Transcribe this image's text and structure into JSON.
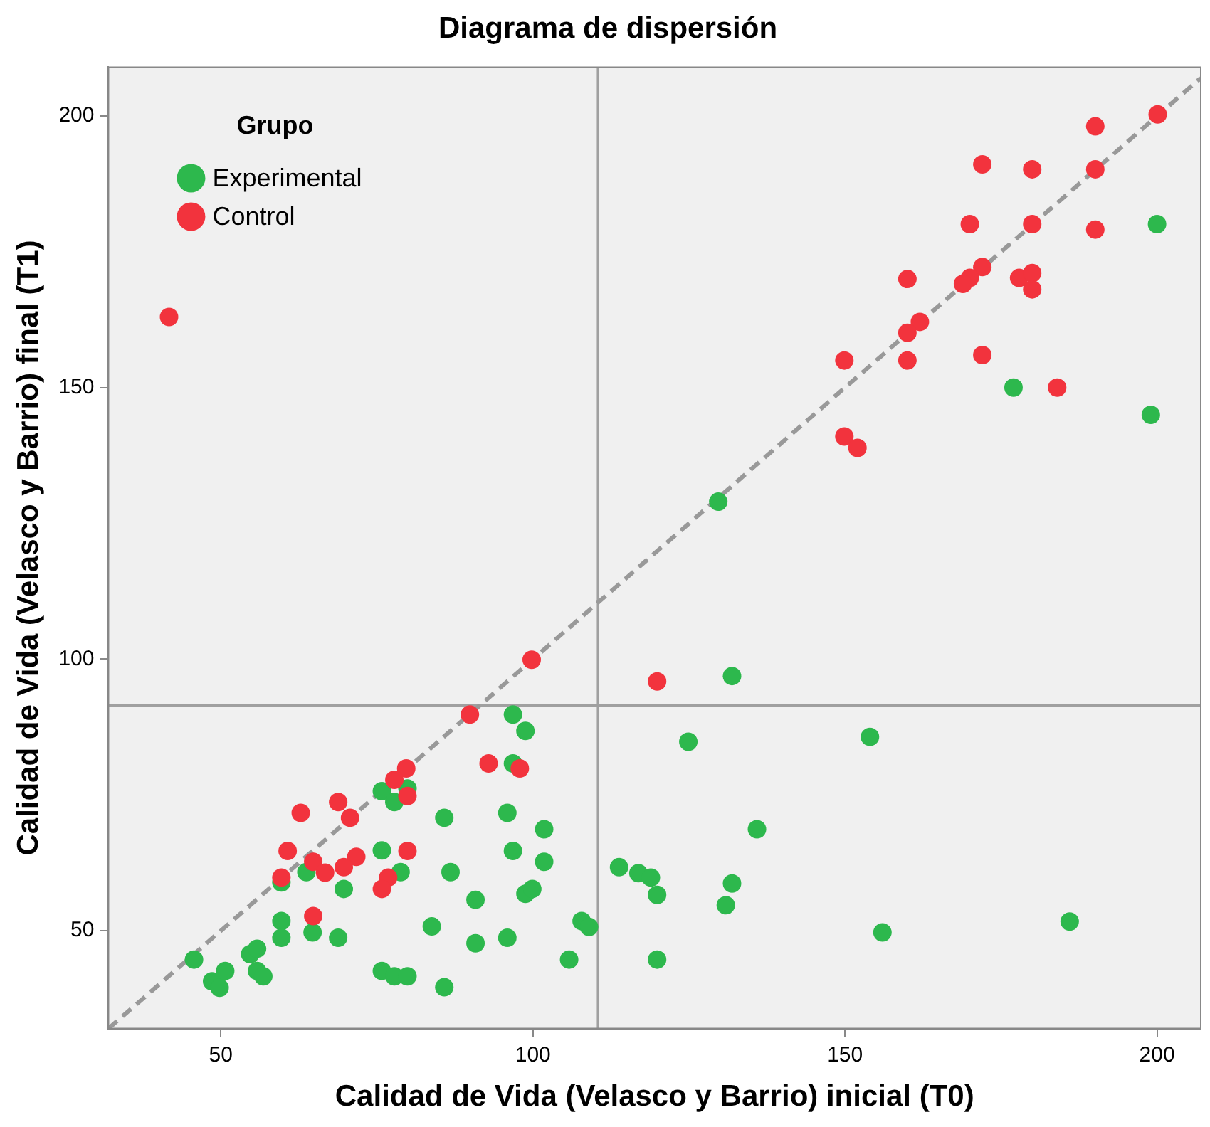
{
  "chart_data": {
    "type": "scatter",
    "title": "Diagrama de dispersión",
    "xlabel": "Calidad de Vida (Velasco y Barrio) inicial (T0)",
    "ylabel": "Calidad de Vida (Velasco y Barrio) final (T1)",
    "legend_title": "Grupo",
    "legend": "top left",
    "marker": "circle",
    "xlim": [
      32,
      207
    ],
    "ylim": [
      32,
      209
    ],
    "xticks": [
      50,
      100,
      150,
      200
    ],
    "yticks": [
      50,
      100,
      150,
      200
    ],
    "ref_lines": [
      {
        "axis": "x",
        "value": 110.4,
        "color": "#a0a0a0"
      },
      {
        "axis": "y",
        "value": 91.5,
        "color": "#a0a0a0"
      }
    ],
    "series": [
      {
        "name": "Experimental",
        "color": "#2db84d",
        "x": [
          45.7,
          48.6,
          49.8,
          50.7,
          54.7,
          55.8,
          55.8,
          56.8,
          59.7,
          59.7,
          59.7,
          63.7,
          64.7,
          68.8,
          69.7,
          75.8,
          75.8,
          75.8,
          77.8,
          77.8,
          78.8,
          79.9,
          79.9,
          83.8,
          85.8,
          85.8,
          86.8,
          96.8,
          98.8,
          96.8,
          95.9,
          101.8,
          96.8,
          101.8,
          90.8,
          98.8,
          99.9,
          90.8,
          95.9,
          107.8,
          109,
          105.8,
          113.8,
          116.9,
          118.9,
          119.9,
          119.9,
          124.9,
          131.9,
          131.9,
          130.9,
          154,
          135.9,
          156,
          186,
          129.7,
          177,
          200,
          199
        ],
        "values": [
          44.7,
          40.7,
          39.5,
          42.6,
          45.7,
          46.7,
          42.6,
          41.6,
          51.8,
          48.7,
          58.9,
          60.8,
          49.7,
          48.7,
          57.7,
          75.7,
          64.8,
          42.6,
          73.7,
          41.6,
          60.8,
          41.6,
          76.2,
          50.8,
          70.8,
          39.6,
          60.8,
          89.8,
          86.8,
          80.8,
          71.7,
          68.7,
          64.7,
          62.7,
          55.7,
          56.8,
          57.7,
          47.7,
          48.7,
          51.8,
          50.7,
          44.7,
          61.7,
          60.6,
          59.8,
          56.6,
          44.7,
          84.8,
          96.9,
          58.7,
          54.7,
          85.7,
          68.7,
          49.7,
          51.7,
          129,
          150,
          180.1,
          145
        ]
      },
      {
        "name": "Control",
        "color": "#f2333d",
        "x": [
          79.7,
          77.8,
          79.9,
          68.8,
          62.8,
          70.7,
          60.7,
          79.9,
          71.7,
          69.7,
          64.8,
          66.7,
          59.7,
          76.8,
          75.8,
          64.8,
          99.8,
          89.9,
          92.9,
          97.9,
          119.9,
          41.7,
          200.1,
          190.1,
          172,
          180,
          190.1,
          170,
          180,
          190.1,
          160,
          172,
          170,
          168.9,
          177.9,
          180,
          180,
          162,
          160,
          149.9,
          160,
          172,
          184,
          149.9,
          152
        ],
        "values": [
          79.9,
          77.8,
          74.8,
          73.7,
          71.7,
          70.8,
          64.7,
          64.7,
          63.6,
          61.7,
          62.7,
          60.7,
          59.8,
          59.8,
          57.7,
          52.7,
          99.9,
          89.8,
          80.8,
          79.9,
          95.9,
          163,
          200.3,
          198.1,
          191.1,
          190.2,
          190.2,
          180.1,
          180.1,
          179.1,
          170,
          172.2,
          170.2,
          169.1,
          170.2,
          171.1,
          168.1,
          162.1,
          160.1,
          155,
          155,
          156,
          150,
          141,
          138.9
        ]
      },
      {
        "type": "line",
        "color": "#999999",
        "line_style": "dashed",
        "marker": "none",
        "x": [
          32,
          207
        ],
        "values": [
          32,
          207
        ]
      }
    ]
  }
}
